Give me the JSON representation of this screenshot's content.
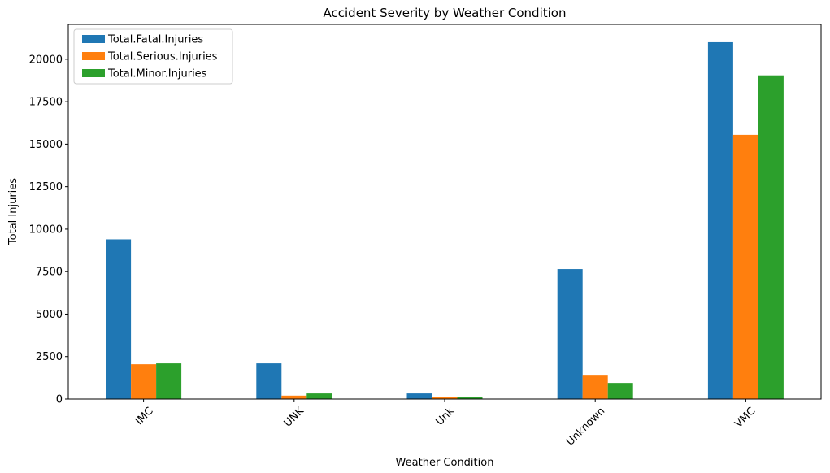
{
  "chart_data": {
    "type": "bar",
    "title": "Accident Severity by Weather Condition",
    "xlabel": "Weather Condition",
    "ylabel": "Total Injuries",
    "categories": [
      "IMC",
      "UNK",
      "Unk",
      "Unknown",
      "VMC"
    ],
    "series": [
      {
        "name": "Total.Fatal.Injuries",
        "color": "#1f77b4",
        "values": [
          9400,
          2100,
          330,
          7650,
          21000
        ]
      },
      {
        "name": "Total.Serious.Injuries",
        "color": "#ff7f0e",
        "values": [
          2050,
          200,
          130,
          1380,
          15550
        ]
      },
      {
        "name": "Total.Minor.Injuries",
        "color": "#2ca02c",
        "values": [
          2100,
          330,
          100,
          950,
          19050
        ]
      }
    ],
    "yticks": [
      0,
      2500,
      5000,
      7500,
      10000,
      12500,
      15000,
      17500,
      20000
    ],
    "ytick_labels": [
      "0",
      "2500",
      "5000",
      "7500",
      "10000",
      "12500",
      "15000",
      "17500",
      "20000"
    ],
    "ylim": [
      0,
      22050
    ],
    "grid": false,
    "legend_position": "top-left",
    "xtick_rotation": 45
  }
}
